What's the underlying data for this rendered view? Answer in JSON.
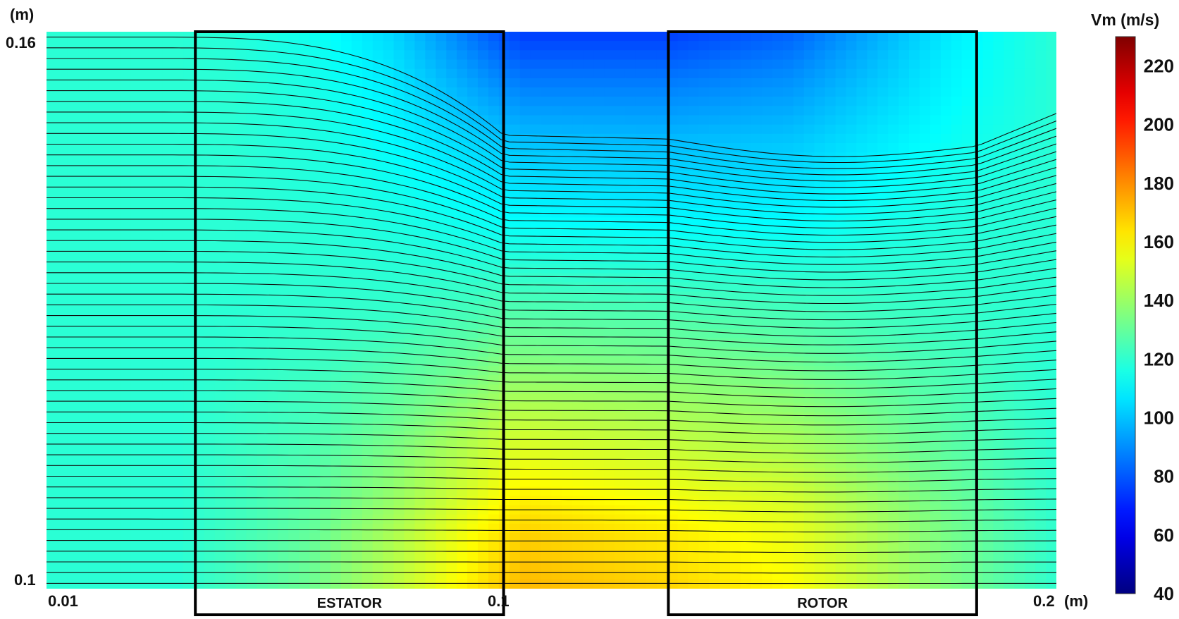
{
  "chart_data": {
    "type": "heatmap",
    "title": "",
    "x_axis": {
      "unit": "(m)",
      "ticks": [
        "0.01",
        "0.1",
        "0.2"
      ],
      "range": [
        0.01,
        0.2
      ]
    },
    "y_axis": {
      "unit": "(m)",
      "ticks": [
        "0.1",
        "0.16"
      ],
      "range": [
        0.1,
        0.16
      ]
    },
    "colorbar": {
      "title": "Vm (m/s)",
      "ticks": [
        "40",
        "60",
        "80",
        "100",
        "120",
        "140",
        "160",
        "180",
        "200",
        "220"
      ],
      "tick_values": [
        40,
        60,
        80,
        100,
        120,
        140,
        160,
        180,
        200,
        220
      ],
      "range": [
        40,
        230
      ],
      "colormap": "jet"
    },
    "regions": [
      {
        "label": "ESTATOR",
        "x_start": 0.038,
        "x_end": 0.096
      },
      {
        "label": "ROTOR",
        "x_start": 0.127,
        "x_end": 0.185
      }
    ],
    "field_vm_m_s": {
      "x": [
        0.01,
        0.035,
        0.045,
        0.06,
        0.075,
        0.09,
        0.096,
        0.1,
        0.127,
        0.15,
        0.18,
        0.2
      ],
      "y": [
        0.16,
        0.154,
        0.148,
        0.142,
        0.136,
        0.13,
        0.124,
        0.118,
        0.112,
        0.106,
        0.1
      ],
      "values": [
        [
          119,
          119,
          118,
          114,
          104,
          85,
          78,
          75,
          75,
          82,
          108,
          119
        ],
        [
          119,
          119,
          119,
          116,
          108,
          95,
          90,
          88,
          88,
          92,
          110,
          119
        ],
        [
          119,
          119,
          119,
          117,
          111,
          104,
          101,
          100,
          99,
          101,
          113,
          119
        ],
        [
          119,
          119,
          119,
          118,
          115,
          111,
          109,
          108,
          107,
          108,
          116,
          119
        ],
        [
          119,
          119,
          119,
          119,
          118,
          117,
          117,
          117,
          116,
          116,
          119,
          119
        ],
        [
          119,
          119,
          119,
          120,
          121,
          124,
          126,
          126,
          125,
          124,
          121,
          119
        ],
        [
          119,
          119,
          120,
          122,
          126,
          132,
          136,
          136,
          134,
          132,
          124,
          119
        ],
        [
          119,
          119,
          121,
          124,
          131,
          141,
          146,
          147,
          144,
          140,
          127,
          119
        ],
        [
          119,
          119,
          122,
          127,
          137,
          150,
          156,
          158,
          154,
          148,
          130,
          120
        ],
        [
          119,
          119,
          123,
          130,
          143,
          158,
          164,
          167,
          162,
          155,
          133,
          120
        ],
        [
          119,
          119,
          124,
          132,
          146,
          162,
          169,
          172,
          167,
          159,
          135,
          120
        ]
      ]
    },
    "streamlines": {
      "count": 52,
      "description_note": ""
    }
  }
}
